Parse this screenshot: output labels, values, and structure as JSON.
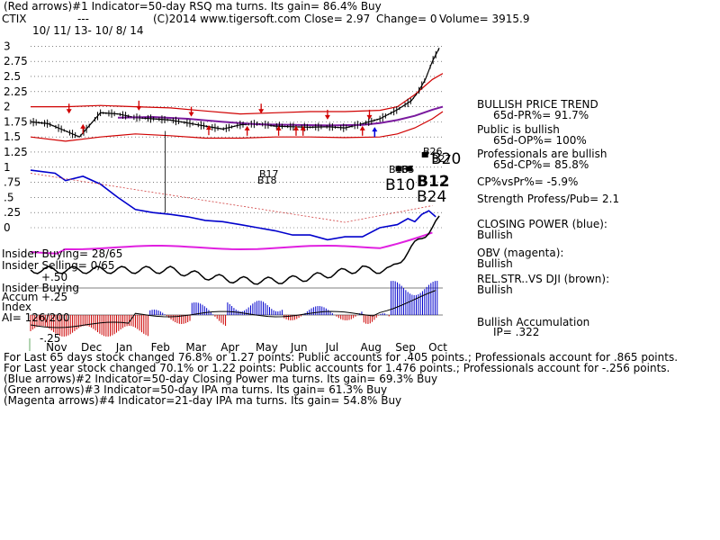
{
  "header": {
    "line1": "(Red arrows)#1 Indicator=50-day RSQ ma turns. Its gain= 86.4% Buy",
    "ticker": "CTIX",
    "dash": "---",
    "copyright": "(C)2014 www.tigersoft.com",
    "close": "Close=  2.97",
    "change": "Change= 0",
    "volume": "Volume= 3915.9",
    "date_range": "10/ 11/ 13- 10/ 8/ 14"
  },
  "chart_data": {
    "type": "line",
    "y_tick_labels": [
      "3",
      "2.75",
      "2.5",
      "2.25",
      "2",
      "1.75",
      "1.5",
      "1.25",
      "1",
      ".75",
      ".5",
      ".25",
      "0"
    ],
    "y_ticks": [
      3,
      2.75,
      2.5,
      2.25,
      2,
      1.75,
      1.5,
      1.25,
      1,
      0.75,
      0.5,
      0.25,
      0
    ],
    "ylim": [
      0,
      3.05
    ],
    "x_tick_labels": [
      "Nov",
      "Dec",
      "Jan",
      "Feb",
      "Mar",
      "Apr",
      "May",
      "Jun",
      "Jul",
      "Aug",
      "Sep",
      "Oct"
    ],
    "x_months": [
      0.7,
      1.7,
      2.7,
      3.7,
      4.7,
      5.7,
      6.7,
      7.7,
      8.7,
      9.7,
      10.7,
      11.65
    ],
    "xlim": [
      0,
      11.8
    ],
    "grid": true,
    "series": [
      {
        "name": "CTIX",
        "color": "#000000",
        "x": [
          0,
          0.5,
          1,
          1.4,
          1.7,
          2,
          2.5,
          3,
          3.5,
          4,
          4.5,
          5,
          5.5,
          6,
          6.5,
          7,
          7.5,
          8,
          8.5,
          9,
          9.5,
          10,
          10.5,
          10.9,
          11.1,
          11.3,
          11.5,
          11.7
        ],
        "values": [
          1.75,
          1.72,
          1.6,
          1.5,
          1.7,
          1.9,
          1.88,
          1.82,
          1.8,
          1.78,
          1.73,
          1.68,
          1.63,
          1.7,
          1.72,
          1.68,
          1.67,
          1.66,
          1.67,
          1.65,
          1.72,
          1.8,
          1.95,
          2.1,
          2.25,
          2.45,
          2.75,
          2.97
        ]
      },
      {
        "name": "upper-band",
        "color": "#d00000",
        "x": [
          0,
          1,
          2,
          3,
          4,
          5,
          6,
          7,
          8,
          9,
          10,
          10.5,
          11,
          11.5,
          11.8
        ],
        "values": [
          2.0,
          2.0,
          2.02,
          2.0,
          1.98,
          1.93,
          1.88,
          1.9,
          1.92,
          1.92,
          1.94,
          2.0,
          2.2,
          2.45,
          2.55
        ]
      },
      {
        "name": "lower-band",
        "color": "#d00000",
        "x": [
          0,
          1,
          2,
          3,
          4,
          5,
          6,
          7,
          8,
          9,
          10,
          10.5,
          11,
          11.5,
          11.8
        ],
        "values": [
          1.5,
          1.43,
          1.5,
          1.55,
          1.52,
          1.48,
          1.48,
          1.5,
          1.5,
          1.49,
          1.5,
          1.55,
          1.65,
          1.8,
          1.92
        ]
      },
      {
        "name": "moving-average",
        "color": "#7a1a9e",
        "x": [
          2.5,
          3.5,
          4.5,
          5.5,
          6.5,
          7.5,
          8.5,
          9.5,
          10,
          10.5,
          11,
          11.5,
          11.8
        ],
        "values": [
          1.82,
          1.83,
          1.8,
          1.75,
          1.71,
          1.7,
          1.69,
          1.7,
          1.73,
          1.78,
          1.85,
          1.95,
          2.0
        ]
      },
      {
        "name": "closing-power",
        "color": "#0000cc",
        "x": [
          0,
          0.7,
          1,
          1.5,
          2,
          2.5,
          3,
          3.5,
          4,
          4.5,
          5,
          5.5,
          6,
          6.5,
          7,
          7.5,
          8,
          8.5,
          9,
          9.5,
          10,
          10.5,
          10.8,
          11,
          11.2,
          11.4,
          11.6
        ],
        "values": [
          0.95,
          0.9,
          0.78,
          0.85,
          0.72,
          0.5,
          0.3,
          0.25,
          0.22,
          0.18,
          0.12,
          0.1,
          0.05,
          0.0,
          -0.05,
          -0.12,
          -0.12,
          -0.2,
          -0.15,
          -0.15,
          0.0,
          0.05,
          0.15,
          0.1,
          0.22,
          0.28,
          0.18
        ]
      }
    ]
  },
  "markers": {
    "b17": "B17",
    "b18": "B18",
    "b10": "B10",
    "b12": "B12",
    "b24": "B24",
    "b20": "B20",
    "b26": "B26",
    "b27": "B27",
    "b16": "B16",
    "b5": "B5"
  },
  "insider": {
    "buying": "Insider Buying= 28/65",
    "selling": "Insider Selling= 0/65",
    "plus50": "+.50",
    "buying2": "Insider Buying",
    "accum": "Accum",
    "plus25": "+.25",
    "index": "Index",
    "ai": "AI= 126/200",
    "minus25": "-.25"
  },
  "right_panel": {
    "trend_title": "BULLISH PRICE TREND",
    "pr": "65d-PR%= 91.7%",
    "public_bullish": "Public is bullish",
    "op": "65d-OP%= 100%",
    "pros_bullish": "Professionals are bullish",
    "cp": "65d-CP%= 85.8%",
    "cp_vs_pr": "CP%vsPr%= -5.9%",
    "strength": "Strength Profess/Pub= 2.1",
    "closing_power_title": "CLOSING POWER (blue):",
    "closing_power_value": "Bullish",
    "obv_title": "OBV (magenta):",
    "obv_value": "Bullish",
    "relstr_title": "REL.STR..VS DJI (brown):",
    "relstr_value": "Bullish",
    "accum_title": "Bullish Accumulation",
    "ip": "IP=  .322"
  },
  "footer": {
    "line1": "For Last 65 days stock changed  76.8% or  1.27 points:  Public accounts for  .405 points.;  Professionals account for  .865 points.",
    "line2": "For Last year stock changed  70.1% or  1.22 points:  Public accounts for  1.476 points.;  Professionals account for -.256 points.",
    "line3": "(Blue arrows)#2 Indicator=50-day Closing Power ma turns. Its gain= 69.3% Buy",
    "line4": "(Green arrows)#3 Indicator=50-day IPA ma turns. Its gain= 61.3% Buy",
    "line5": "(Magenta arrows)#4 Indicator=21-day IPA ma turns. Its gain= 54.8% Buy"
  },
  "colors": {
    "price": "#000000",
    "band": "#d00000",
    "ma": "#7a1a9e",
    "closing_power": "#0000cc",
    "obv": "#e020e0",
    "relstr": "#000000",
    "accum_pos": "#0000cc",
    "accum_neg": "#cc0000",
    "grid": "#333333"
  }
}
